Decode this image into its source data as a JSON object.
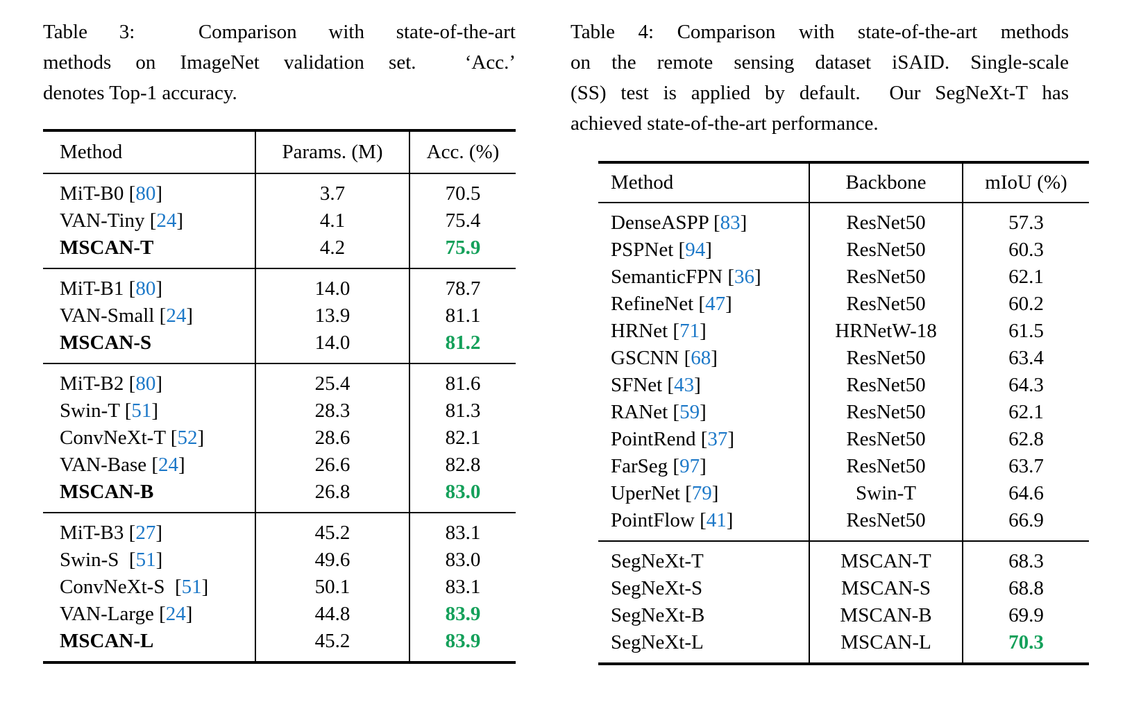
{
  "colors": {
    "citation_blue": "#1c78c8",
    "highlight_green": "#14a05a",
    "text": "#000000",
    "background": "#ffffff"
  },
  "cite_brackets": {
    "open": "[",
    "close": "]"
  },
  "table3": {
    "caption_lines": [
      "Table 3:  Comparison with state-of-the-art",
      "methods on ImageNet validation set.  ‘Acc.’",
      "denotes Top-1 accuracy."
    ],
    "headers": [
      "Method",
      "Params. (M)",
      "Acc. (%)"
    ],
    "value_names": [
      "params-cell",
      "acc-cell"
    ],
    "groups": [
      [
        {
          "m": "MiT-B0",
          "c": "80",
          "v": [
            "3.7",
            "70.5"
          ]
        },
        {
          "m": "VAN-Tiny",
          "c": "24",
          "v": [
            "4.1",
            "75.4"
          ]
        },
        {
          "m": "MSCAN-T",
          "b": true,
          "v": [
            "4.2",
            "75.9"
          ],
          "hl": [
            1
          ]
        }
      ],
      [
        {
          "m": "MiT-B1",
          "c": "80",
          "v": [
            "14.0",
            "78.7"
          ]
        },
        {
          "m": "VAN-Small",
          "c": "24",
          "v": [
            "13.9",
            "81.1"
          ]
        },
        {
          "m": "MSCAN-S",
          "b": true,
          "v": [
            "14.0",
            "81.2"
          ],
          "hl": [
            1
          ]
        }
      ],
      [
        {
          "m": "MiT-B2",
          "c": "80",
          "v": [
            "25.4",
            "81.6"
          ]
        },
        {
          "m": "Swin-T",
          "c": "51",
          "v": [
            "28.3",
            "81.3"
          ]
        },
        {
          "m": "ConvNeXt-T",
          "c": "52",
          "v": [
            "28.6",
            "82.1"
          ]
        },
        {
          "m": "VAN-Base",
          "c": "24",
          "v": [
            "26.6",
            "82.8"
          ]
        },
        {
          "m": "MSCAN-B",
          "b": true,
          "v": [
            "26.8",
            "83.0"
          ],
          "hl": [
            1
          ]
        }
      ],
      [
        {
          "m": "MiT-B3",
          "c": "27",
          "v": [
            "45.2",
            "83.1"
          ]
        },
        {
          "m": "Swin-S ",
          "c": "51",
          "v": [
            "49.6",
            "83.0"
          ]
        },
        {
          "m": "ConvNeXt-S ",
          "c": "51",
          "v": [
            "50.1",
            "83.1"
          ]
        },
        {
          "m": "VAN-Large",
          "c": "24",
          "v": [
            "44.8",
            "83.9"
          ],
          "hl": [
            1
          ]
        },
        {
          "m": "MSCAN-L",
          "b": true,
          "v": [
            "45.2",
            "83.9"
          ],
          "hl": [
            1
          ]
        }
      ]
    ]
  },
  "table4": {
    "caption_lines": [
      "Table 4: Comparison with state-of-the-art methods",
      "on the remote sensing dataset iSAID. Single-scale",
      "(SS) test is applied by default.  Our SegNeXt-T has",
      "achieved state-of-the-art performance."
    ],
    "headers": [
      "Method",
      "Backbone",
      "mIoU (%)"
    ],
    "value_names": [
      "backbone-cell",
      "miou-cell"
    ],
    "groups": [
      [
        {
          "m": "DenseASPP",
          "c": "83",
          "v": [
            "ResNet50",
            "57.3"
          ]
        },
        {
          "m": "PSPNet",
          "c": "94",
          "v": [
            "ResNet50",
            "60.3"
          ]
        },
        {
          "m": "SemanticFPN",
          "c": "36",
          "v": [
            "ResNet50",
            "62.1"
          ]
        },
        {
          "m": "RefineNet",
          "c": "47",
          "v": [
            "ResNet50",
            "60.2"
          ]
        },
        {
          "m": "HRNet",
          "c": "71",
          "v": [
            "HRNetW-18",
            "61.5"
          ]
        },
        {
          "m": "GSCNN",
          "c": "68",
          "v": [
            "ResNet50",
            "63.4"
          ]
        },
        {
          "m": "SFNet",
          "c": "43",
          "v": [
            "ResNet50",
            "64.3"
          ]
        },
        {
          "m": "RANet",
          "c": "59",
          "v": [
            "ResNet50",
            "62.1"
          ]
        },
        {
          "m": "PointRend",
          "c": "37",
          "v": [
            "ResNet50",
            "62.8"
          ]
        },
        {
          "m": "FarSeg",
          "c": "97",
          "v": [
            "ResNet50",
            "63.7"
          ]
        },
        {
          "m": "UperNet",
          "c": "79",
          "v": [
            "Swin-T",
            "64.6"
          ]
        },
        {
          "m": "PointFlow",
          "c": "41",
          "v": [
            "ResNet50",
            "66.9"
          ]
        }
      ],
      [
        {
          "m": "SegNeXt-T",
          "v": [
            "MSCAN-T",
            "68.3"
          ]
        },
        {
          "m": "SegNeXt-S",
          "v": [
            "MSCAN-S",
            "68.8"
          ]
        },
        {
          "m": "SegNeXt-B",
          "v": [
            "MSCAN-B",
            "69.9"
          ]
        },
        {
          "m": "SegNeXt-L",
          "v": [
            "MSCAN-L",
            "70.3"
          ],
          "hl": [
            1
          ]
        }
      ]
    ]
  }
}
